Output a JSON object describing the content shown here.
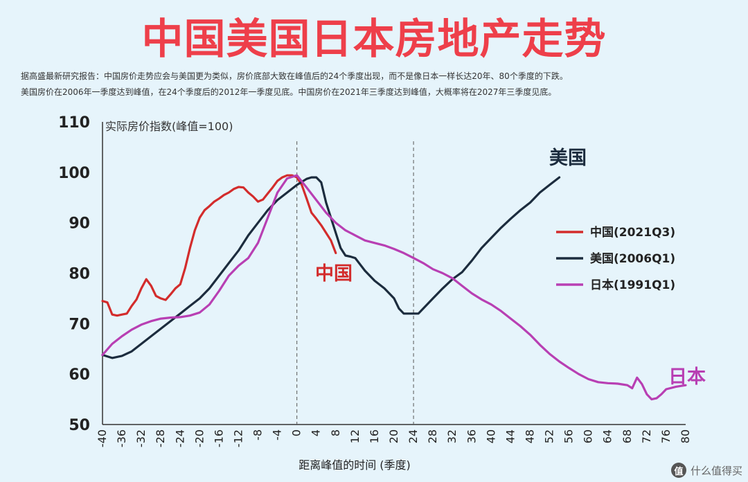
{
  "header": {
    "title": "中国美国日本房地产走势",
    "desc_line1": "据高盛最新研究报告：中国房价走势应会与美国更为类似，房价底部大致在峰值后的24个季度出现，而不是像日本一样长达20年、80个季度的下跌。",
    "desc_line2": "美国房价在2006年一季度达到峰值，在24个季度后的2012年一季度见底。中国房价在2021年三季度达到峰值，大概率将在2027年三季度见底。"
  },
  "watermark": {
    "logo": "值",
    "text": "什么值得买"
  },
  "chart_data": {
    "type": "line",
    "title": "",
    "ylabel": "实际房价指数(峰值=100)",
    "xlabel": "距离峰值的时间 (季度)",
    "xlim": [
      -40,
      80
    ],
    "ylim": [
      50,
      110
    ],
    "yticks": [
      50,
      60,
      70,
      80,
      90,
      100,
      110
    ],
    "yticklabels": [
      "50",
      "60",
      "70",
      "80",
      "90",
      "100",
      "110"
    ],
    "xticks": [
      -40,
      -36,
      -32,
      -28,
      -24,
      -20,
      -16,
      -12,
      -8,
      -4,
      0,
      4,
      8,
      12,
      16,
      20,
      24,
      28,
      32,
      36,
      40,
      44,
      48,
      52,
      56,
      60,
      64,
      68,
      72,
      76,
      80
    ],
    "xticklabels": [
      "-40",
      "-36",
      "-32",
      "-28",
      "-24",
      "-20",
      "-16",
      "-12",
      "-8",
      "-4",
      "0",
      "4",
      "8",
      "12",
      "16",
      "20",
      "24",
      "28",
      "32",
      "36",
      "40",
      "44",
      "48",
      "52",
      "56",
      "60",
      "64",
      "68",
      "72",
      "76",
      "80"
    ],
    "vlines": [
      0,
      24
    ],
    "legend_position": "right",
    "series": [
      {
        "name": "中国(2021Q3)",
        "inline_label": "中国",
        "color": "#d32c2c",
        "points": [
          [
            -40,
            74.5
          ],
          [
            -39,
            74.2
          ],
          [
            -38,
            71.8
          ],
          [
            -37,
            71.6
          ],
          [
            -36,
            71.8
          ],
          [
            -35,
            72.0
          ],
          [
            -34,
            73.5
          ],
          [
            -33,
            74.8
          ],
          [
            -32,
            77.0
          ],
          [
            -31,
            78.8
          ],
          [
            -30,
            77.5
          ],
          [
            -29,
            75.5
          ],
          [
            -28,
            75.0
          ],
          [
            -27,
            74.7
          ],
          [
            -26,
            75.8
          ],
          [
            -25,
            77.0
          ],
          [
            -24,
            77.8
          ],
          [
            -23,
            81.0
          ],
          [
            -22,
            85.0
          ],
          [
            -21,
            88.5
          ],
          [
            -20,
            91.0
          ],
          [
            -19,
            92.5
          ],
          [
            -18,
            93.3
          ],
          [
            -17,
            94.2
          ],
          [
            -16,
            94.8
          ],
          [
            -15,
            95.5
          ],
          [
            -14,
            96.0
          ],
          [
            -13,
            96.7
          ],
          [
            -12,
            97.1
          ],
          [
            -11,
            97.0
          ],
          [
            -10,
            96.0
          ],
          [
            -9,
            95.2
          ],
          [
            -8,
            94.2
          ],
          [
            -7,
            94.6
          ],
          [
            -6,
            95.8
          ],
          [
            -5,
            97.0
          ],
          [
            -4,
            98.3
          ],
          [
            -3,
            99.0
          ],
          [
            -2,
            99.4
          ],
          [
            -1,
            99.4
          ],
          [
            0,
            99.0
          ],
          [
            1,
            97.5
          ],
          [
            2,
            94.8
          ],
          [
            3,
            92.0
          ],
          [
            4,
            90.8
          ],
          [
            5,
            89.5
          ],
          [
            6,
            88.0
          ],
          [
            7,
            86.5
          ],
          [
            8,
            84.0
          ]
        ]
      },
      {
        "name": "美国(2006Q1)",
        "inline_label": "美国",
        "color": "#1c2c3e",
        "points": [
          [
            -40,
            63.8
          ],
          [
            -38,
            63.2
          ],
          [
            -36,
            63.6
          ],
          [
            -34,
            64.5
          ],
          [
            -32,
            66.0
          ],
          [
            -30,
            67.5
          ],
          [
            -28,
            69.0
          ],
          [
            -26,
            70.5
          ],
          [
            -24,
            72.0
          ],
          [
            -22,
            73.5
          ],
          [
            -20,
            75.0
          ],
          [
            -18,
            77.0
          ],
          [
            -16,
            79.5
          ],
          [
            -14,
            82.0
          ],
          [
            -12,
            84.5
          ],
          [
            -10,
            87.5
          ],
          [
            -8,
            90.0
          ],
          [
            -6,
            92.5
          ],
          [
            -4,
            94.5
          ],
          [
            -2,
            96.0
          ],
          [
            0,
            97.5
          ],
          [
            2,
            98.7
          ],
          [
            3,
            99.0
          ],
          [
            4,
            99.0
          ],
          [
            5,
            98.0
          ],
          [
            6,
            94.0
          ],
          [
            8,
            88.0
          ],
          [
            9,
            85.0
          ],
          [
            10,
            83.5
          ],
          [
            11,
            83.3
          ],
          [
            12,
            83.0
          ],
          [
            14,
            80.5
          ],
          [
            16,
            78.5
          ],
          [
            18,
            77.0
          ],
          [
            20,
            75.0
          ],
          [
            21,
            73.0
          ],
          [
            22,
            72.0
          ],
          [
            23,
            72.0
          ],
          [
            24,
            72.0
          ],
          [
            25,
            72.0
          ],
          [
            26,
            73.0
          ],
          [
            28,
            75.0
          ],
          [
            30,
            77.0
          ],
          [
            32,
            78.8
          ],
          [
            34,
            80.2
          ],
          [
            36,
            82.5
          ],
          [
            38,
            85.0
          ],
          [
            40,
            87.0
          ],
          [
            42,
            89.0
          ],
          [
            44,
            90.8
          ],
          [
            46,
            92.5
          ],
          [
            48,
            94.0
          ],
          [
            50,
            96.0
          ],
          [
            52,
            97.5
          ],
          [
            54,
            99.0
          ]
        ]
      },
      {
        "name": "日本(1991Q1)",
        "inline_label": "日本",
        "color": "#b83fb3",
        "points": [
          [
            -40,
            63.8
          ],
          [
            -38,
            66.0
          ],
          [
            -36,
            67.5
          ],
          [
            -34,
            68.8
          ],
          [
            -32,
            69.8
          ],
          [
            -30,
            70.5
          ],
          [
            -28,
            71.0
          ],
          [
            -26,
            71.2
          ],
          [
            -24,
            71.3
          ],
          [
            -22,
            71.6
          ],
          [
            -20,
            72.2
          ],
          [
            -18,
            73.8
          ],
          [
            -16,
            76.5
          ],
          [
            -14,
            79.5
          ],
          [
            -12,
            81.5
          ],
          [
            -10,
            83.0
          ],
          [
            -8,
            86.0
          ],
          [
            -6,
            91.0
          ],
          [
            -4,
            96.0
          ],
          [
            -2,
            98.8
          ],
          [
            0,
            99.4
          ],
          [
            2,
            97.0
          ],
          [
            4,
            94.5
          ],
          [
            6,
            92.0
          ],
          [
            8,
            90.0
          ],
          [
            10,
            88.5
          ],
          [
            12,
            87.5
          ],
          [
            14,
            86.5
          ],
          [
            16,
            86.0
          ],
          [
            18,
            85.5
          ],
          [
            20,
            84.8
          ],
          [
            22,
            84.0
          ],
          [
            24,
            83.0
          ],
          [
            26,
            82.0
          ],
          [
            28,
            80.8
          ],
          [
            30,
            80.0
          ],
          [
            32,
            79.0
          ],
          [
            34,
            77.5
          ],
          [
            36,
            76.0
          ],
          [
            38,
            74.8
          ],
          [
            40,
            73.8
          ],
          [
            42,
            72.5
          ],
          [
            44,
            71.0
          ],
          [
            46,
            69.5
          ],
          [
            48,
            67.8
          ],
          [
            50,
            65.8
          ],
          [
            52,
            64.0
          ],
          [
            54,
            62.5
          ],
          [
            56,
            61.2
          ],
          [
            58,
            60.0
          ],
          [
            60,
            59.0
          ],
          [
            62,
            58.4
          ],
          [
            64,
            58.2
          ],
          [
            66,
            58.1
          ],
          [
            68,
            57.8
          ],
          [
            69,
            57.2
          ],
          [
            70,
            59.3
          ],
          [
            71,
            58.0
          ],
          [
            72,
            56.0
          ],
          [
            73,
            55.0
          ],
          [
            74,
            55.2
          ],
          [
            75,
            56.0
          ],
          [
            76,
            57.0
          ],
          [
            78,
            57.5
          ],
          [
            80,
            57.8
          ]
        ]
      }
    ]
  }
}
